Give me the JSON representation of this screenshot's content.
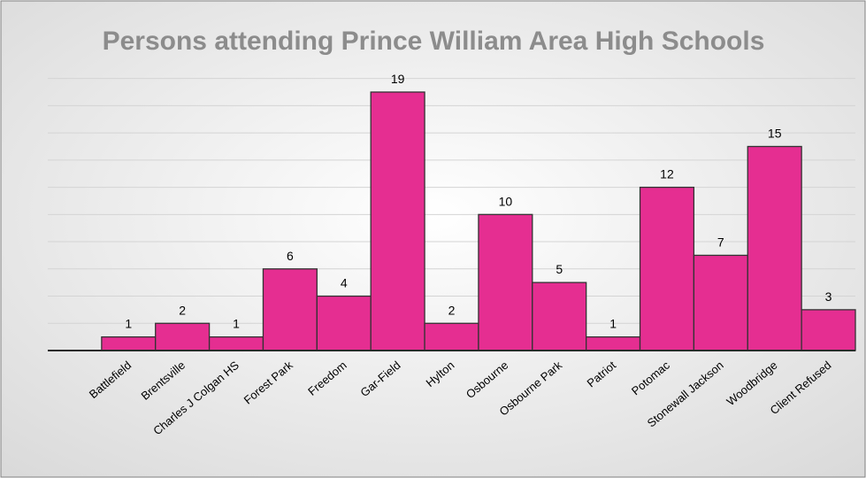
{
  "chart_data": {
    "type": "bar",
    "title": "Persons attending Prince William Area High Schools",
    "xlabel": "",
    "ylabel": "",
    "categories": [
      "",
      "Battlefield",
      "Brentsville",
      "Charles J Colgan HS",
      "Forest Park",
      "Freedom",
      "Gar-Field",
      "Hylton",
      "Osbourne",
      "Osbourne Park",
      "Patriot",
      "Potomac",
      "Stonewall Jackson",
      "Woodbridge",
      "Client Refused"
    ],
    "values": [
      0,
      1,
      2,
      1,
      6,
      4,
      19,
      2,
      10,
      5,
      1,
      12,
      7,
      15,
      3
    ],
    "ylim": [
      0,
      19
    ],
    "grid": true,
    "legend": "none",
    "bar_color": "#e52e91",
    "background_gradient": [
      "#ffffff",
      "#d9d9d9"
    ],
    "title_color": "#8c8c8c"
  }
}
